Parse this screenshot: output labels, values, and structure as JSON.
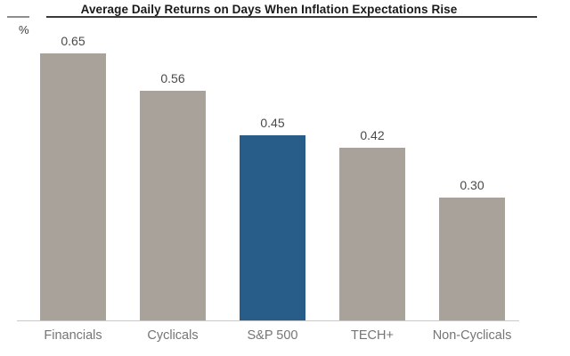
{
  "chart": {
    "title": "Average Daily Returns on Days When Inflation Expectations Rise",
    "y_unit": "%",
    "bars": [
      {
        "category": "Financials",
        "value": 0.65,
        "label": "0.65",
        "highlight": false
      },
      {
        "category": "Cyclicals",
        "value": 0.56,
        "label": "0.56",
        "highlight": false
      },
      {
        "category": "S&P 500",
        "value": 0.45,
        "label": "0.45",
        "highlight": true
      },
      {
        "category": "TECH+",
        "value": 0.42,
        "label": "0.42",
        "highlight": false
      },
      {
        "category": "Non-Cyclicals",
        "value": 0.3,
        "label": "0.30",
        "highlight": false
      }
    ],
    "colors": {
      "bar_default": "#a9a29b",
      "bar_highlight": "#275d88",
      "value_label": "#4a4a4a",
      "category_label": "#757575",
      "axis_line": "#c9c9c9",
      "title_underline": "#3a3a3a"
    }
  },
  "chart_data": {
    "type": "bar",
    "title": "Average Daily Returns on Days When Inflation Expectations Rise",
    "categories": [
      "Financials",
      "Cyclicals",
      "S&P 500",
      "TECH+",
      "Non-Cyclicals"
    ],
    "values": [
      0.65,
      0.56,
      0.45,
      0.42,
      0.3
    ],
    "xlabel": "",
    "ylabel": "%",
    "ylim": [
      0,
      0.78
    ],
    "grid": false,
    "legend": false,
    "data_labels": true,
    "highlighted_category": "S&P 500",
    "bar_colors": {
      "default": "#a9a29b",
      "highlight": "#275d88"
    }
  }
}
